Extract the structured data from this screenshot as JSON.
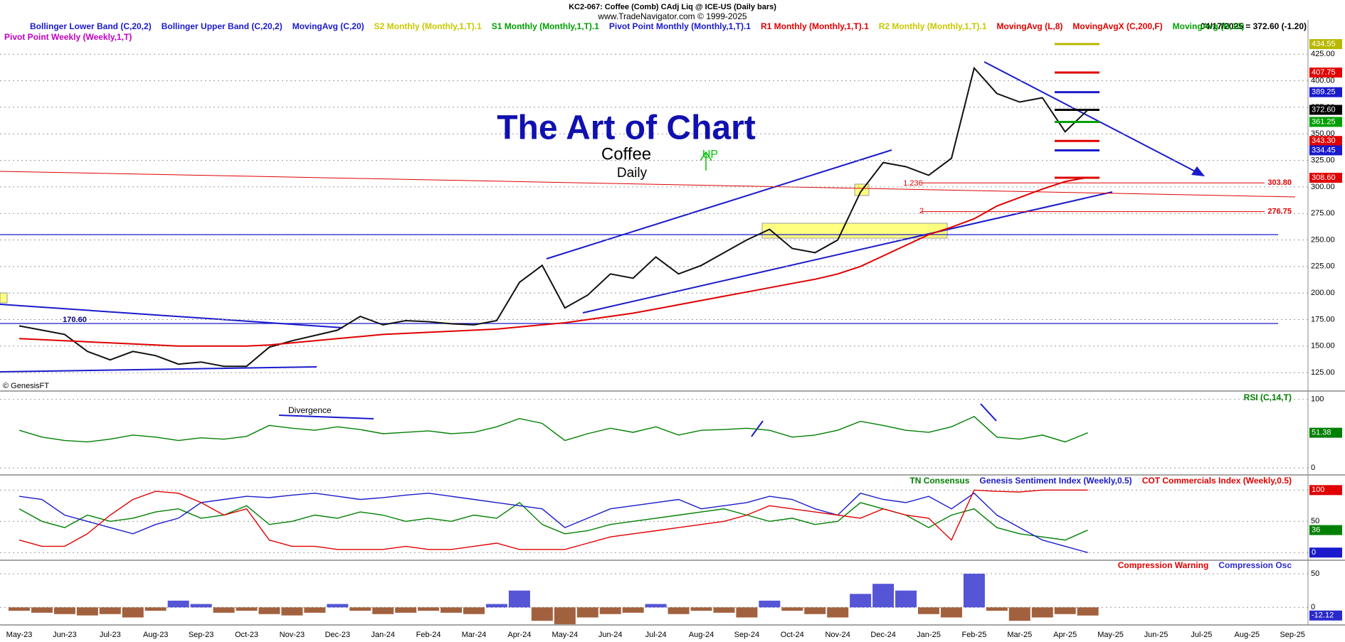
{
  "chart_data": [
    {
      "type": "line",
      "title": "KC2-067: Coffee (Comb) CAdj Liq @ ICE-US (Daily bars)",
      "subtitle": "www.TradeNavigator.com © 1999-2025",
      "quote": "04/17/2025 = 372.60 (-1.20)",
      "note": "Pivot Point Weekly (Weekly,1,T)",
      "note_color": "#c000c0",
      "legend": [
        {
          "name": "Bollinger Lower Band (C,20,2)",
          "color": "#1a1acc"
        },
        {
          "name": "Bollinger Upper Band (C,20,2)",
          "color": "#1a1acc"
        },
        {
          "name": "MovingAvg (C,20)",
          "color": "#1a1acc"
        },
        {
          "name": "S2 Monthly (Monthly,1,T).1",
          "color": "#c8c800"
        },
        {
          "name": "S1 Monthly (Monthly,1,T).1",
          "color": "#00a000"
        },
        {
          "name": "Pivot Point Monthly (Monthly,1,T).1",
          "color": "#1a1acc"
        },
        {
          "name": "R1 Monthly (Monthly,1,T).1",
          "color": "#e00000"
        },
        {
          "name": "R2 Monthly (Monthly,1,T).1",
          "color": "#c8c800"
        },
        {
          "name": "MovingAvg (L,8)",
          "color": "#e00000"
        },
        {
          "name": "MovingAvgX (C,200,F)",
          "color": "#e00000"
        },
        {
          "name": "MovingAvg (H,10)",
          "color": "#00a000"
        }
      ],
      "annotations": [
        {
          "text": "The Art of Chart",
          "color": "#1010b0"
        },
        {
          "text": "Coffee",
          "color": "#000000"
        },
        {
          "text": "Daily",
          "color": "#000000"
        },
        {
          "text": "UP",
          "color": "#00c000"
        },
        {
          "text": "© GenesisFT",
          "color": "#000000"
        },
        {
          "text": "170.60",
          "color": "#000080"
        },
        {
          "text": "1.236",
          "color": "#e00000"
        },
        {
          "text": "2",
          "color": "#e00000"
        }
      ],
      "categories": [
        "May-23",
        null,
        "Jun-23",
        null,
        "Jul-23",
        null,
        "Aug-23",
        null,
        "Sep-23",
        null,
        "Oct-23",
        null,
        "Nov-23",
        null,
        "Dec-23",
        null,
        "Jan-24",
        null,
        "Feb-24",
        null,
        "Mar-24",
        null,
        "Apr-24",
        null,
        "May-24",
        null,
        "Jun-24",
        null,
        "Jul-24",
        null,
        "Aug-24",
        null,
        "Sep-24",
        null,
        "Oct-24",
        null,
        "Nov-24",
        null,
        "Dec-24",
        null,
        "Jan-25",
        null,
        "Feb-25",
        null,
        "Mar-25",
        null,
        "Apr-25",
        null,
        "May-25",
        null,
        "Jun-25",
        null,
        "Jul-25",
        null,
        "Aug-25",
        null,
        "Sep-25"
      ],
      "series": [
        {
          "color": "#111111",
          "values": [
            169,
            165,
            161,
            145,
            137,
            145,
            141,
            133,
            135,
            131,
            131,
            149,
            155,
            160,
            165,
            178,
            170,
            174,
            173,
            171,
            170,
            174,
            210,
            226,
            186,
            198,
            218,
            214,
            234,
            218,
            226,
            238,
            250,
            260,
            242,
            238,
            250,
            295,
            323,
            319,
            311,
            327,
            412,
            388,
            380,
            384,
            352,
            372.6,
            null,
            null,
            null,
            null,
            null,
            null,
            null,
            null,
            null
          ]
        },
        {
          "color": "#e00000",
          "values": [
            157,
            156,
            155,
            154,
            153,
            152,
            151,
            150,
            150,
            150,
            150,
            151,
            153,
            155,
            157,
            159,
            161,
            162,
            163,
            164,
            165,
            166,
            168,
            170,
            172,
            175,
            178,
            181,
            185,
            189,
            193,
            197,
            201,
            205,
            209,
            213,
            218,
            225,
            235,
            245,
            255,
            262,
            270,
            282,
            290,
            298,
            305,
            309,
            null,
            null,
            null,
            null,
            null,
            null,
            null,
            null,
            null
          ]
        }
      ],
      "ylim": [
        109,
        454
      ],
      "yticks": [
        {
          "value": 125,
          "label": "125.00"
        },
        {
          "value": 150,
          "label": "150.00"
        },
        {
          "value": 175,
          "label": "175.00"
        },
        {
          "value": 200,
          "label": "200.00"
        },
        {
          "value": 225,
          "label": "225.00"
        },
        {
          "value": 250,
          "label": "250.00"
        },
        {
          "value": 275,
          "label": "275.00"
        },
        {
          "value": 300,
          "label": "300.00"
        },
        {
          "value": 325,
          "label": "325.00"
        },
        {
          "value": 350,
          "label": "350.00"
        },
        {
          "value": 375,
          "label": "375.00"
        },
        {
          "value": 400,
          "label": "400.00"
        },
        {
          "value": 425,
          "label": "425.00"
        }
      ],
      "grid": true,
      "level_lines": [
        {
          "value": 303.8,
          "label": "303.80",
          "color": "#e00000"
        },
        {
          "value": 276.75,
          "label": "276.75",
          "color": "#e00000"
        }
      ],
      "levels": [
        {
          "value": 434.55,
          "label": "434.55",
          "color": "#b8b800"
        },
        {
          "value": 407.75,
          "label": "407.75",
          "color": "#e00000"
        },
        {
          "value": 389.25,
          "label": "389.25",
          "color": "#1a1acc"
        },
        {
          "value": 372.6,
          "label": "372.60",
          "color": "#000000"
        },
        {
          "value": 361.25,
          "label": "361.25",
          "color": "#00a000"
        },
        {
          "value": 343.3,
          "label": "343.30",
          "color": "#e00000"
        },
        {
          "value": 334.45,
          "label": "334.45",
          "color": "#1a1acc"
        },
        {
          "value": 308.6,
          "label": "308.60",
          "color": "#e00000"
        }
      ]
    },
    {
      "type": "line",
      "annotations": [
        {
          "text": "Divergence",
          "color": "#000000"
        }
      ],
      "series": [
        {
          "name": "RSI (C,14,T)",
          "color": "#008000",
          "values": [
            55,
            45,
            40,
            38,
            42,
            48,
            45,
            40,
            44,
            42,
            46,
            62,
            58,
            55,
            60,
            56,
            50,
            52,
            54,
            50,
            52,
            60,
            72,
            65,
            40,
            50,
            58,
            52,
            60,
            48,
            55,
            56,
            58,
            55,
            45,
            48,
            55,
            68,
            62,
            55,
            52,
            60,
            75,
            45,
            42,
            48,
            38,
            51.38,
            null,
            null,
            null,
            null,
            null,
            null,
            null,
            null,
            null
          ]
        }
      ],
      "ylim": [
        -8,
        109
      ],
      "yticks": [
        0,
        100
      ],
      "grid": true,
      "last_value_badges": true
    },
    {
      "type": "line",
      "series": [
        {
          "name": "TN Consensus",
          "color": "#008000",
          "values": [
            70,
            50,
            40,
            60,
            50,
            55,
            65,
            70,
            55,
            60,
            75,
            45,
            50,
            60,
            55,
            65,
            60,
            50,
            55,
            50,
            60,
            55,
            80,
            45,
            30,
            35,
            45,
            50,
            55,
            60,
            65,
            70,
            60,
            50,
            55,
            45,
            50,
            80,
            70,
            60,
            40,
            60,
            70,
            40,
            30,
            25,
            20,
            36,
            null,
            null,
            null,
            null,
            null,
            null,
            null,
            null,
            null
          ]
        },
        {
          "name": "Genesis Sentiment Index (Weekly,0.5)",
          "color": "#1a1acc",
          "values": [
            90,
            85,
            60,
            50,
            40,
            30,
            45,
            55,
            80,
            85,
            90,
            88,
            92,
            95,
            90,
            85,
            88,
            92,
            95,
            90,
            85,
            80,
            75,
            70,
            40,
            55,
            70,
            75,
            80,
            85,
            70,
            75,
            80,
            90,
            85,
            70,
            60,
            95,
            85,
            80,
            90,
            70,
            95,
            60,
            40,
            20,
            10,
            0,
            null,
            null,
            null,
            null,
            null,
            null,
            null,
            null,
            null
          ]
        },
        {
          "name": "COT Commercials Index (Weekly,0.5)",
          "color": "#e00000",
          "values": [
            20,
            10,
            10,
            30,
            60,
            85,
            98,
            95,
            80,
            60,
            70,
            20,
            10,
            10,
            5,
            5,
            5,
            10,
            5,
            5,
            10,
            15,
            5,
            5,
            5,
            15,
            25,
            30,
            35,
            40,
            45,
            50,
            60,
            75,
            70,
            65,
            60,
            55,
            70,
            60,
            55,
            20,
            100,
            98,
            97,
            100,
            100,
            100,
            null,
            null,
            null,
            null,
            null,
            null,
            null,
            null,
            null
          ]
        }
      ],
      "ylim": [
        -10,
        122
      ],
      "yticks": [
        0,
        50,
        100
      ],
      "grid": true,
      "last_value_badges": true
    },
    {
      "type": "bar",
      "legend": [
        {
          "name": "Compression Warning",
          "color": "#e00000"
        }
      ],
      "series": [
        {
          "name": "Compression Osc",
          "color": "#2a2acc",
          "negative_color": "#8b3a0e",
          "values": [
            -5,
            -8,
            -10,
            -12,
            -10,
            -15,
            -5,
            10,
            5,
            -8,
            -5,
            -10,
            -12,
            -8,
            5,
            -5,
            -10,
            -8,
            -5,
            -8,
            -10,
            5,
            25,
            -20,
            -25,
            -15,
            -10,
            -8,
            5,
            -10,
            -5,
            -8,
            -15,
            10,
            -5,
            -10,
            -15,
            20,
            35,
            25,
            -10,
            -15,
            50,
            -5,
            -20,
            -15,
            -10,
            -12.12,
            null,
            null,
            null,
            null,
            null,
            null,
            null,
            null,
            null
          ]
        }
      ],
      "ylim": [
        -24,
        69
      ],
      "yticks": [
        0,
        50
      ],
      "grid": true,
      "last_value_badges": true
    }
  ]
}
